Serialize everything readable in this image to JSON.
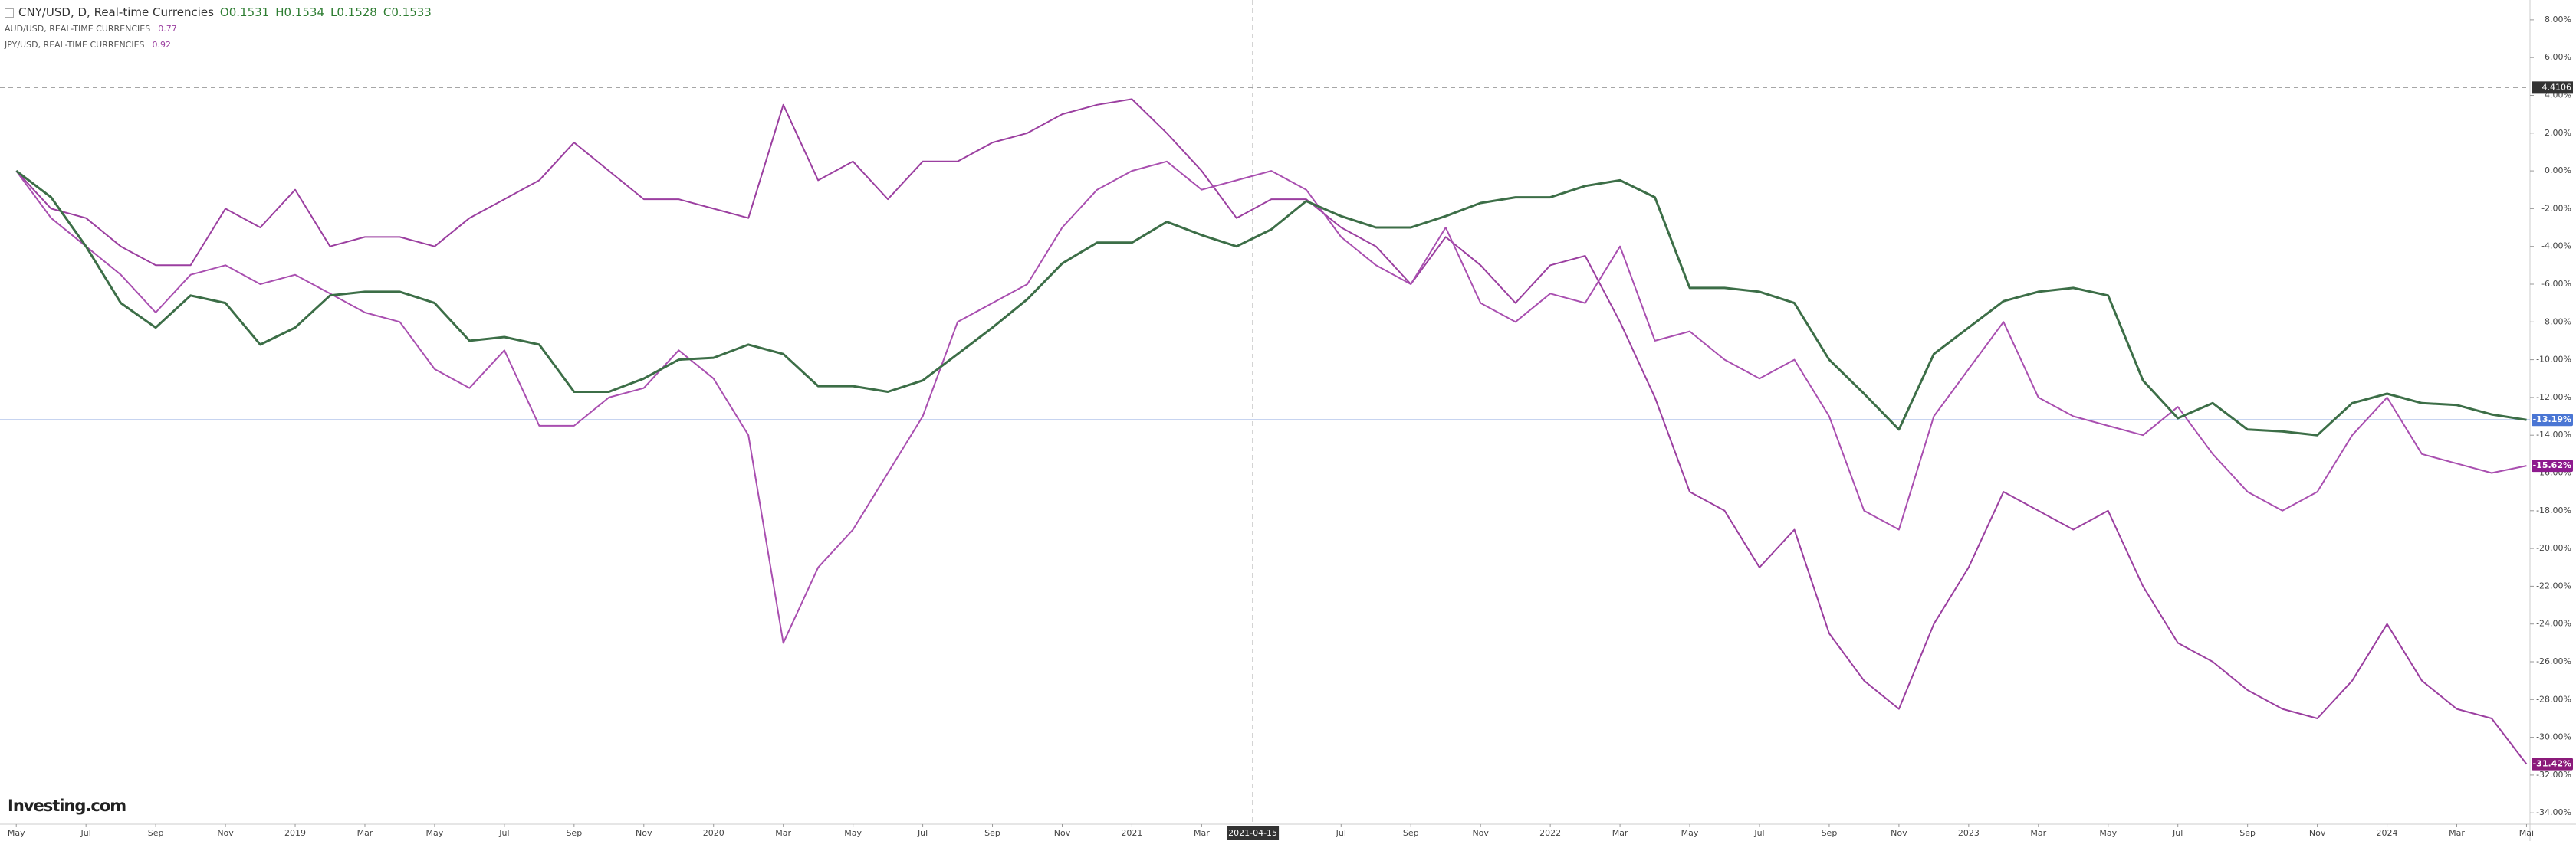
{
  "chart_data": {
    "type": "line",
    "title": "CNY/USD, D, Real-time Currencies",
    "ohlc": [
      {
        "label": "O",
        "value": 0.1531
      },
      {
        "label": "H",
        "value": 0.1534
      },
      {
        "label": "L",
        "value": 0.1528
      },
      {
        "label": "C",
        "value": 0.1533
      }
    ],
    "logo": "Investing.com",
    "x": [
      "2018-05",
      "2018-06",
      "2018-07",
      "2018-08",
      "2018-09",
      "2018-10",
      "2018-11",
      "2018-12",
      "2019-01",
      "2019-02",
      "2019-03",
      "2019-04",
      "2019-05",
      "2019-06",
      "2019-07",
      "2019-08",
      "2019-09",
      "2019-10",
      "2019-11",
      "2019-12",
      "2020-01",
      "2020-02",
      "2020-03",
      "2020-04",
      "2020-05",
      "2020-06",
      "2020-07",
      "2020-08",
      "2020-09",
      "2020-10",
      "2020-11",
      "2020-12",
      "2021-01",
      "2021-02",
      "2021-03",
      "2021-04",
      "2021-05",
      "2021-06",
      "2021-07",
      "2021-08",
      "2021-09",
      "2021-10",
      "2021-11",
      "2021-12",
      "2022-01",
      "2022-02",
      "2022-03",
      "2022-04",
      "2022-05",
      "2022-06",
      "2022-07",
      "2022-08",
      "2022-09",
      "2022-10",
      "2022-11",
      "2022-12",
      "2023-01",
      "2023-02",
      "2023-03",
      "2023-04",
      "2023-05",
      "2023-06",
      "2023-07",
      "2023-08",
      "2023-09",
      "2023-10",
      "2023-11",
      "2023-12",
      "2024-01",
      "2024-02",
      "2024-03",
      "2024-04",
      "2024-05"
    ],
    "series": [
      {
        "name": "CNY/USD, D, Real-time Currencies",
        "color": "#3c6e47",
        "last_label": "-13.19%",
        "label_color": "#4a76d4",
        "values": [
          0,
          -1.4,
          -4,
          -7,
          -8.3,
          -6.6,
          -7,
          -9.2,
          -8.3,
          -6.6,
          -6.4,
          -6.4,
          -7,
          -9,
          -8.8,
          -9.2,
          -11.7,
          -11.7,
          -11,
          -10,
          -9.9,
          -9.2,
          -9.7,
          -11.4,
          -11.4,
          -11.7,
          -11.1,
          -9.7,
          -8.3,
          -6.8,
          -4.9,
          -3.8,
          -3.8,
          -2.7,
          -3.4,
          -4,
          -3.1,
          -1.6,
          -2.4,
          -3,
          -3,
          -2.4,
          -1.7,
          -1.4,
          -1.4,
          -0.8,
          -0.5,
          -1.4,
          -6.2,
          -6.2,
          -6.4,
          -7,
          -10,
          -11.8,
          -13.7,
          -9.7,
          -8.3,
          -6.9,
          -6.4,
          -6.2,
          -6.6,
          -11.1,
          -13.1,
          -12.3,
          -13.7,
          -13.8,
          -14,
          -12.3,
          -11.8,
          -12.3,
          -12.4,
          -12.9,
          -13.19
        ]
      },
      {
        "name": "AUD/USD, REAL-TIME CURRENCIES",
        "price": 0.77,
        "color": "#a94fb0",
        "last_label": "-15.62%",
        "label_color": "#8e1a8e",
        "values": [
          0,
          -2.5,
          -4,
          -5.5,
          -7.5,
          -5.5,
          -5,
          -6,
          -5.5,
          -6.5,
          -7.5,
          -8,
          -10.5,
          -11.5,
          -9.5,
          -13.5,
          -13.5,
          -12,
          -11.5,
          -9.5,
          -11,
          -14,
          -25,
          -21,
          -19,
          -16,
          -13,
          -8,
          -7,
          -6,
          -3,
          -1,
          0,
          0.5,
          -1,
          -0.5,
          0,
          -1,
          -3.5,
          -5,
          -6,
          -3,
          -7,
          -8,
          -6.5,
          -7,
          -4,
          -9,
          -8.5,
          -10,
          -11,
          -10,
          -13,
          -18,
          -19,
          -13,
          -10.5,
          -8,
          -12,
          -13,
          -13.5,
          -14,
          -12.5,
          -15,
          -17,
          -18,
          -17,
          -14,
          -12,
          -15,
          -15.5,
          -16,
          -15.62
        ]
      },
      {
        "name": "JPY/USD, REAL-TIME CURRENCIES",
        "price": 0.92,
        "color": "#9b3fa0",
        "last_label": "-31.42%",
        "label_color": "#8b1a7a",
        "values": [
          0,
          -2,
          -2.5,
          -4,
          -5,
          -5,
          -2,
          -3,
          -1,
          -4,
          -3.5,
          -3.5,
          -4,
          -2.5,
          -1.5,
          -0.5,
          1.5,
          0,
          -1.5,
          -1.5,
          -2,
          -2.5,
          3.5,
          -0.5,
          0.5,
          -1.5,
          0.5,
          0.5,
          1.5,
          2,
          3,
          3.5,
          3.8,
          2,
          0,
          -2.5,
          -1.5,
          -1.5,
          -3,
          -4,
          -6,
          -3.5,
          -5,
          -7,
          -5,
          -4.5,
          -8,
          -12,
          -17,
          -18,
          -21,
          -19,
          -24.5,
          -27,
          -28.5,
          -24,
          -21,
          -17,
          -18,
          -19,
          -18,
          -22,
          -25,
          -26,
          -27.5,
          -28.5,
          -29,
          -27,
          -24,
          -27,
          -28.5,
          -29,
          -31.42
        ]
      }
    ],
    "xlim": [
      "2018-04-17",
      "2024-05-04"
    ],
    "xticks": [
      {
        "value": "2018-05",
        "label": "May"
      },
      {
        "value": "2018-07",
        "label": "Jul"
      },
      {
        "value": "2018-09",
        "label": "Sep"
      },
      {
        "value": "2018-11",
        "label": "Nov"
      },
      {
        "value": "2019-01",
        "label": "2019"
      },
      {
        "value": "2019-03",
        "label": "Mar"
      },
      {
        "value": "2019-05",
        "label": "May"
      },
      {
        "value": "2019-07",
        "label": "Jul"
      },
      {
        "value": "2019-09",
        "label": "Sep"
      },
      {
        "value": "2019-11",
        "label": "Nov"
      },
      {
        "value": "2020-01",
        "label": "2020"
      },
      {
        "value": "2020-03",
        "label": "Mar"
      },
      {
        "value": "2020-05",
        "label": "May"
      },
      {
        "value": "2020-07",
        "label": "Jul"
      },
      {
        "value": "2020-09",
        "label": "Sep"
      },
      {
        "value": "2020-11",
        "label": "Nov"
      },
      {
        "value": "2021-01",
        "label": "2021"
      },
      {
        "value": "2021-03",
        "label": "Mar"
      },
      {
        "value": "2021-07",
        "label": "Jul"
      },
      {
        "value": "2021-09",
        "label": "Sep"
      },
      {
        "value": "2021-11",
        "label": "Nov"
      },
      {
        "value": "2022-01",
        "label": "2022"
      },
      {
        "value": "2022-03",
        "label": "Mar"
      },
      {
        "value": "2022-05",
        "label": "May"
      },
      {
        "value": "2022-07",
        "label": "Jul"
      },
      {
        "value": "2022-09",
        "label": "Sep"
      },
      {
        "value": "2022-11",
        "label": "Nov"
      },
      {
        "value": "2023-01",
        "label": "2023"
      },
      {
        "value": "2023-03",
        "label": "Mar"
      },
      {
        "value": "2023-05",
        "label": "May"
      },
      {
        "value": "2023-07",
        "label": "Jul"
      },
      {
        "value": "2023-09",
        "label": "Sep"
      },
      {
        "value": "2023-11",
        "label": "Nov"
      },
      {
        "value": "2024-01",
        "label": "2024"
      },
      {
        "value": "2024-03",
        "label": "Mar"
      },
      {
        "value": "2024-05",
        "label": "Mai"
      }
    ],
    "ylim": [
      -34.6,
      9.05
    ],
    "yticks": [
      {
        "value": 8,
        "label": "8.00%"
      },
      {
        "value": 6,
        "label": "6.00%"
      },
      {
        "value": 4,
        "label": "4.00%"
      },
      {
        "value": 2,
        "label": "2.00%"
      },
      {
        "value": 0,
        "label": "0.00%"
      },
      {
        "value": -2,
        "label": "-2.00%"
      },
      {
        "value": -4,
        "label": "-4.00%"
      },
      {
        "value": -6,
        "label": "-6.00%"
      },
      {
        "value": -8,
        "label": "-8.00%"
      },
      {
        "value": -10,
        "label": "-10.00%"
      },
      {
        "value": -12,
        "label": "-12.00%"
      },
      {
        "value": -14,
        "label": "-14.00%"
      },
      {
        "value": -16,
        "label": "-16.00%"
      },
      {
        "value": -18,
        "label": "-18.00%"
      },
      {
        "value": -20,
        "label": "-20.00%"
      },
      {
        "value": -22,
        "label": "-22.00%"
      },
      {
        "value": -24,
        "label": "-24.00%"
      },
      {
        "value": -26,
        "label": "-26.00%"
      },
      {
        "value": -28,
        "label": "-28.00%"
      },
      {
        "value": -30,
        "label": "-30.00%"
      },
      {
        "value": -32,
        "label": "-32.00%"
      },
      {
        "value": -34,
        "label": "-34.00%"
      }
    ],
    "crosshair": {
      "x": "2021-04-15",
      "y": 4.4106
    }
  }
}
